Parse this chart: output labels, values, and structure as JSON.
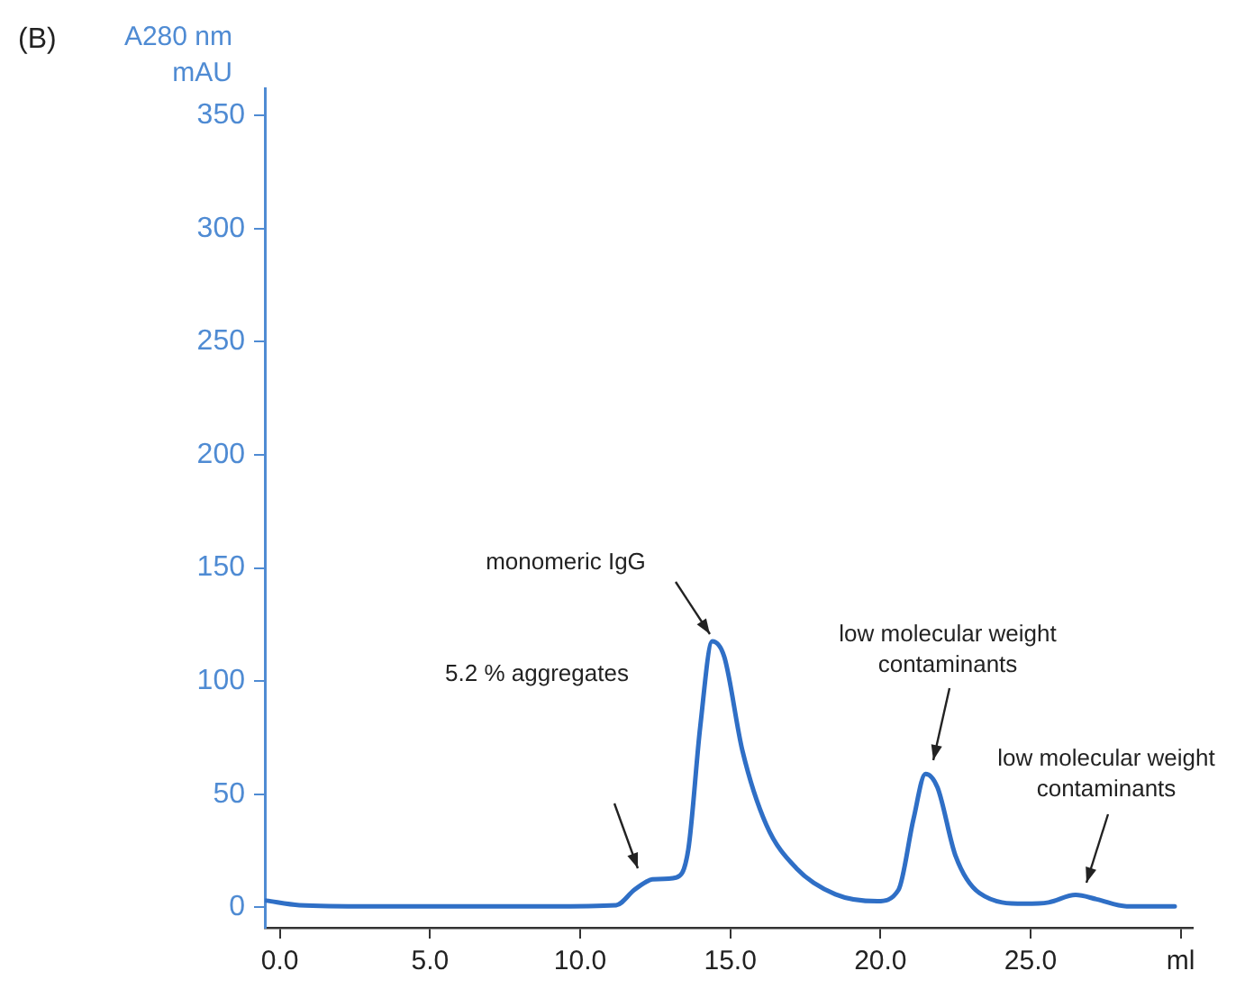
{
  "chart_data": {
    "type": "line",
    "ylabel": "A280 nm\nmAU",
    "x": [
      -0.45,
      0.65,
      3,
      6,
      9,
      11.2,
      11.8,
      12.2,
      12.4,
      13.2,
      13.6,
      14.0,
      14.4,
      14.8,
      15.4,
      16.2,
      17.2,
      18.5,
      19.9,
      20.6,
      21.1,
      21.5,
      21.9,
      22.5,
      23.3,
      24.8,
      25.6,
      26.5,
      27.2,
      28.2,
      29.8
    ],
    "series": [
      {
        "color": "#2f6fc6",
        "values": [
          3,
          1,
          0.5,
          0.5,
          0.5,
          1,
          7.7,
          11.3,
          12.4,
          13.2,
          25.5,
          80,
          117.6,
          110.7,
          69.5,
          36.5,
          17.3,
          5.8,
          2.7,
          7.7,
          39,
          59,
          53,
          22.8,
          6.3,
          1.6,
          2.2,
          5.5,
          3.6,
          0.5,
          0.5
        ]
      }
    ],
    "xlim": [
      -0.5,
      30.4
    ],
    "ylim": [
      -9,
      362
    ],
    "xticks": [
      {
        "value": 0,
        "label": "0.0"
      },
      {
        "value": 5,
        "label": "5.0"
      },
      {
        "value": 10,
        "label": "10.0"
      },
      {
        "value": 15,
        "label": "15.0"
      },
      {
        "value": 20,
        "label": "20.0"
      },
      {
        "value": 25,
        "label": "25.0"
      },
      {
        "value": 30,
        "label": "ml"
      }
    ],
    "yticks": [
      0,
      50,
      100,
      150,
      200,
      250,
      300,
      350
    ],
    "grid": false,
    "legend": false,
    "marker": "none",
    "line_style": "solid",
    "annotations": [
      "(B)",
      "5.2 % aggregates",
      "monomeric IgG",
      "low molecular weight\ncontaminants",
      "low molecular weight\ncontaminants"
    ]
  }
}
